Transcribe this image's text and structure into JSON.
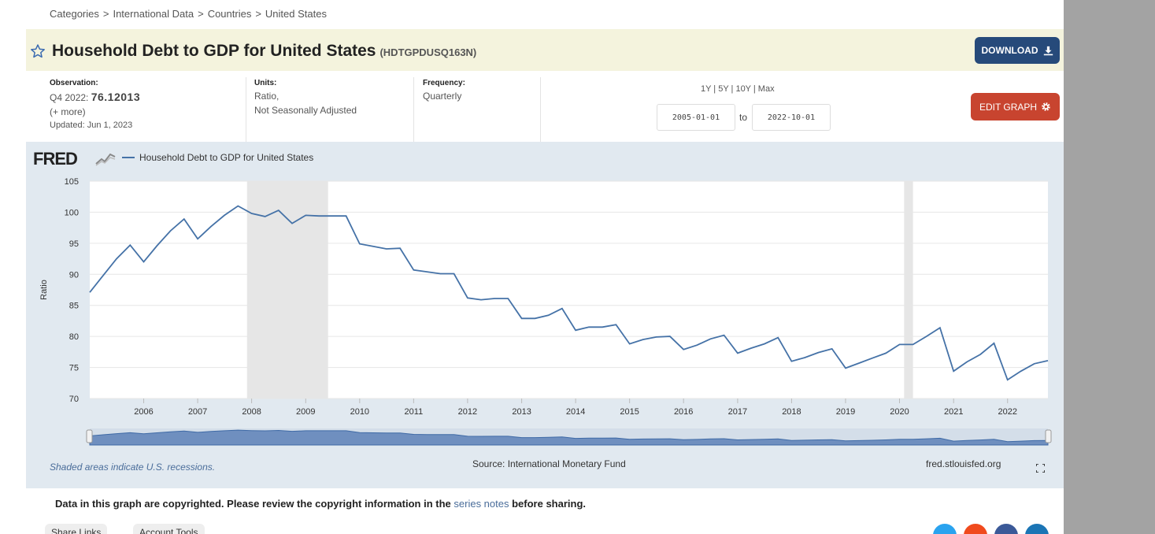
{
  "breadcrumb": [
    "Categories",
    "International Data",
    "Countries",
    "United States"
  ],
  "title": "Household Debt to GDP for United States",
  "series_id": "(HDTGPDUSQ163N)",
  "download_label": "DOWNLOAD",
  "observation": {
    "label": "Observation:",
    "period": "Q4 2022:",
    "value": "76.12013",
    "more": "(+ more)",
    "updated": "Updated: Jun 1, 2023"
  },
  "units": {
    "label": "Units:",
    "line1": "Ratio,",
    "line2": "Not Seasonally Adjusted"
  },
  "frequency": {
    "label": "Frequency:",
    "value": "Quarterly"
  },
  "range_links": "1Y | 5Y | 10Y | Max",
  "date_start": "2005-01-01",
  "date_end": "2022-10-01",
  "to_label": "to",
  "edit_graph_label": "EDIT GRAPH",
  "legend_label": "Household Debt to GDP for United States",
  "logo": "FRED",
  "recession_note": "Shaded areas indicate U.S. recessions.",
  "source": "Source: International Monetary Fund",
  "site": "fred.stlouisfed.org",
  "copyright": {
    "pre": "Data in this graph are copyrighted. Please review the copyright information in the ",
    "link": "series notes",
    "post": " before sharing."
  },
  "chips": [
    "Share Links",
    "Account Tools"
  ],
  "colors": {
    "line": "#4572a7",
    "title_bg": "#f4f3dd",
    "panel_bg": "#e1e9f0",
    "download": "#264a7a",
    "edit": "#c8442f"
  },
  "chart_data": {
    "type": "line",
    "title": "",
    "xlabel": "",
    "ylabel": "Ratio",
    "ylim": [
      70,
      105
    ],
    "yticks": [
      70,
      75,
      80,
      85,
      90,
      95,
      100,
      105
    ],
    "xlim": [
      "2005-01-01",
      "2022-10-01"
    ],
    "xticks": [
      "2006",
      "2007",
      "2008",
      "2009",
      "2010",
      "2011",
      "2012",
      "2013",
      "2014",
      "2015",
      "2016",
      "2017",
      "2018",
      "2019",
      "2020",
      "2021",
      "2022"
    ],
    "grid": true,
    "legend": "top-left",
    "recessions": [
      [
        "2007-12-01",
        "2009-06-01"
      ],
      [
        "2020-02-01",
        "2020-04-01"
      ]
    ],
    "series": [
      {
        "name": "Household Debt to GDP for United States",
        "x": [
          "2005-01-01",
          "2005-04-01",
          "2005-07-01",
          "2005-10-01",
          "2006-01-01",
          "2006-04-01",
          "2006-07-01",
          "2006-10-01",
          "2007-01-01",
          "2007-04-01",
          "2007-07-01",
          "2007-10-01",
          "2008-01-01",
          "2008-04-01",
          "2008-07-01",
          "2008-10-01",
          "2009-01-01",
          "2009-04-01",
          "2009-07-01",
          "2009-10-01",
          "2010-01-01",
          "2010-04-01",
          "2010-07-01",
          "2010-10-01",
          "2011-01-01",
          "2011-04-01",
          "2011-07-01",
          "2011-10-01",
          "2012-01-01",
          "2012-04-01",
          "2012-07-01",
          "2012-10-01",
          "2013-01-01",
          "2013-04-01",
          "2013-07-01",
          "2013-10-01",
          "2014-01-01",
          "2014-04-01",
          "2014-07-01",
          "2014-10-01",
          "2015-01-01",
          "2015-04-01",
          "2015-07-01",
          "2015-10-01",
          "2016-01-01",
          "2016-04-01",
          "2016-07-01",
          "2016-10-01",
          "2017-01-01",
          "2017-04-01",
          "2017-07-01",
          "2017-10-01",
          "2018-01-01",
          "2018-04-01",
          "2018-07-01",
          "2018-10-01",
          "2019-01-01",
          "2019-04-01",
          "2019-07-01",
          "2019-10-01",
          "2020-01-01",
          "2020-04-01",
          "2020-07-01",
          "2020-10-01",
          "2021-01-01",
          "2021-04-01",
          "2021-07-01",
          "2021-10-01",
          "2022-01-01",
          "2022-04-01",
          "2022-07-01",
          "2022-10-01"
        ],
        "values": [
          87.1,
          89.8,
          92.5,
          94.7,
          92.0,
          94.6,
          97.0,
          98.9,
          95.7,
          97.7,
          99.5,
          101.0,
          99.8,
          99.3,
          100.3,
          98.2,
          99.5,
          99.4,
          99.4,
          99.4,
          94.9,
          94.5,
          94.1,
          94.2,
          90.7,
          90.4,
          90.1,
          90.1,
          86.2,
          85.9,
          86.1,
          86.1,
          82.9,
          82.9,
          83.4,
          84.5,
          81.0,
          81.5,
          81.5,
          81.9,
          78.8,
          79.5,
          79.9,
          80.0,
          77.9,
          78.6,
          79.6,
          80.2,
          77.3,
          78.1,
          78.8,
          79.8,
          76.0,
          76.6,
          77.4,
          78.0,
          74.9,
          75.7,
          76.5,
          77.3,
          78.7,
          78.7,
          80.0,
          81.4,
          74.4,
          75.9,
          77.1,
          78.9,
          73.0,
          74.4,
          75.6,
          76.1
        ]
      }
    ]
  }
}
